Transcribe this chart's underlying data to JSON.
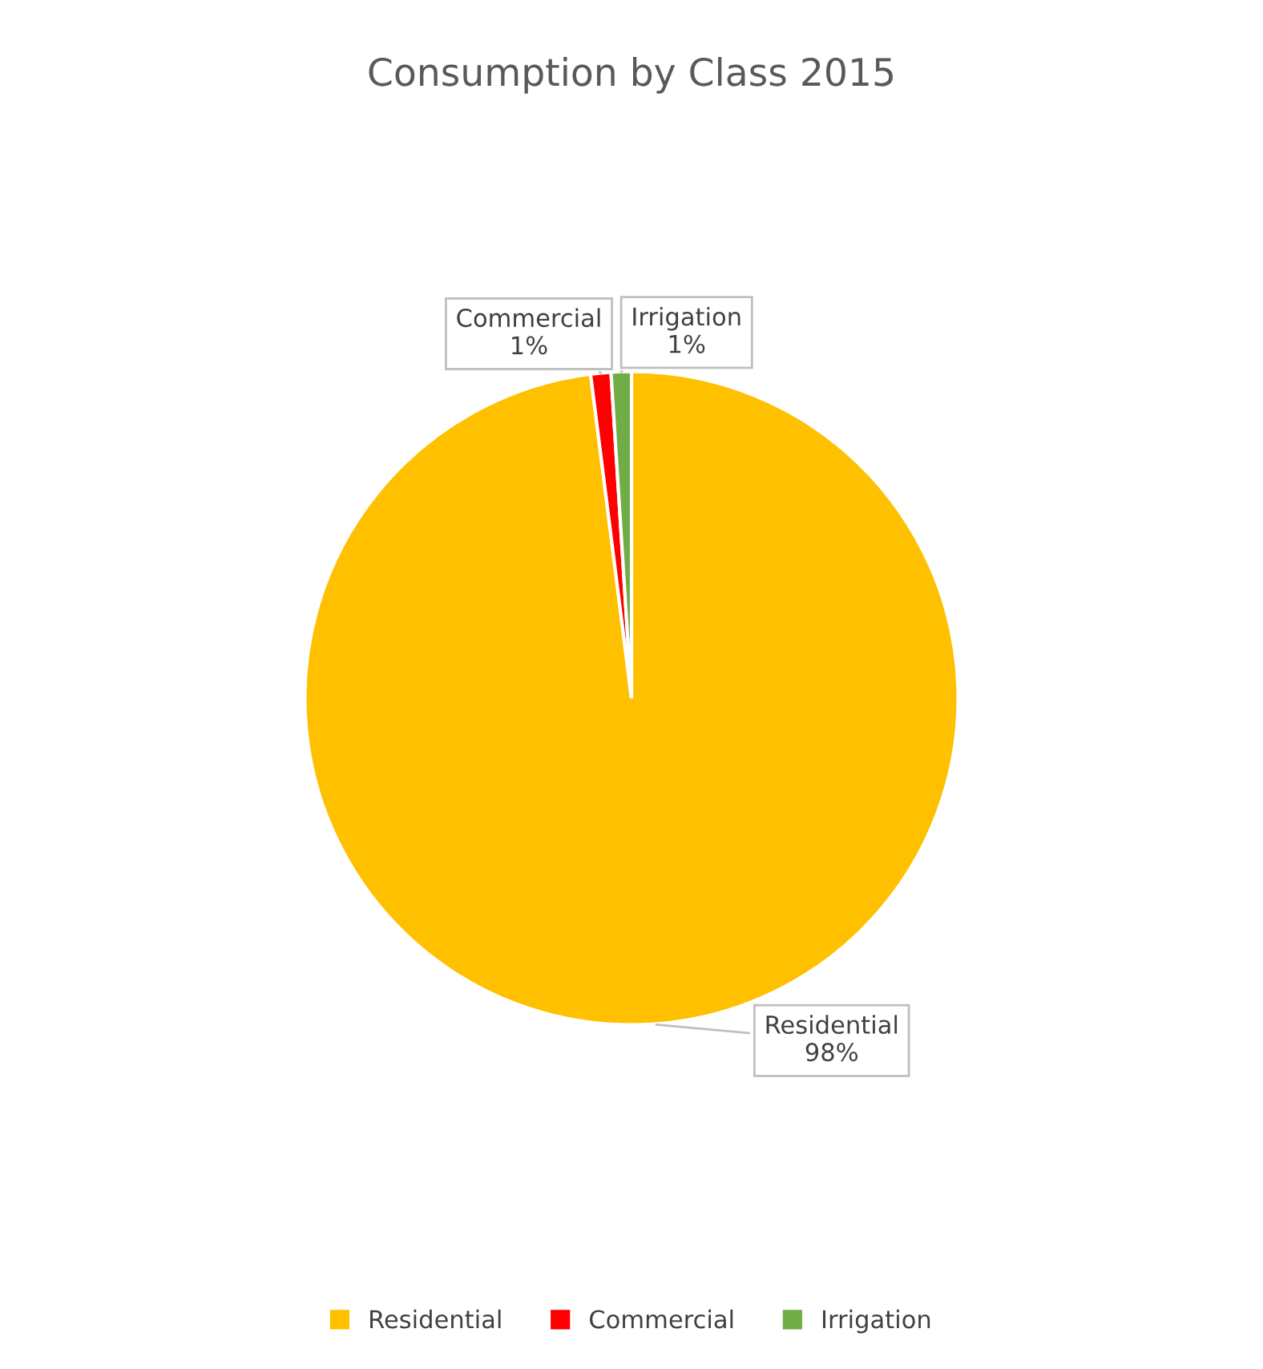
{
  "chart_data": {
    "type": "pie",
    "title": "Consumption by Class 2015",
    "categories": [
      "Residential",
      "Commercial",
      "Irrigation"
    ],
    "values": [
      98,
      1,
      1
    ],
    "colors": [
      "#ffc000",
      "#ff0000",
      "#70ad47"
    ],
    "value_labels": [
      "98%",
      "1%",
      "1%"
    ],
    "legend": "bottom"
  }
}
